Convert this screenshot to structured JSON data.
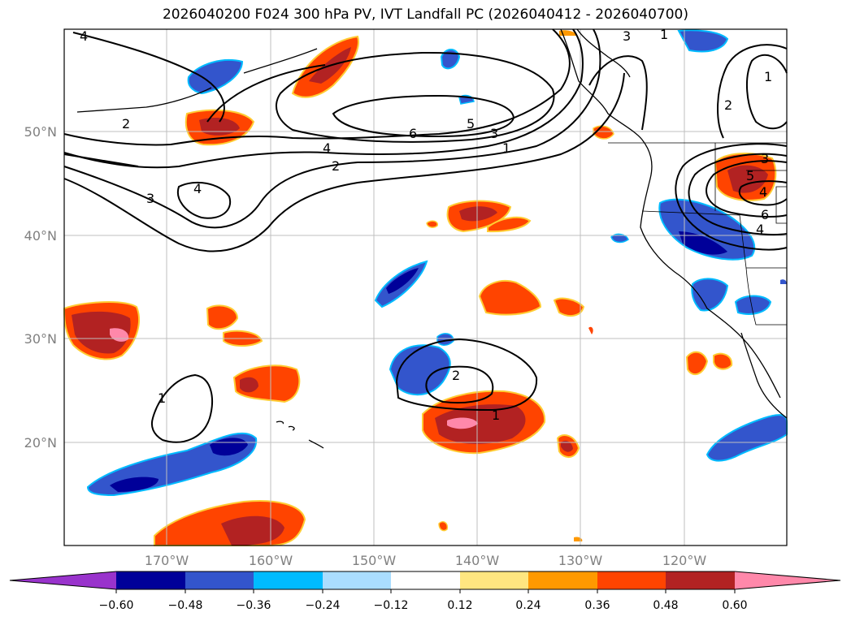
{
  "title": "2026040200 F024 300 hPa PV, IVT Landfall PC (2026040412 - 2026040700)",
  "map": {
    "lat_labels": [
      "50°N",
      "40°N",
      "30°N",
      "20°N"
    ],
    "lon_labels": [
      "170°W",
      "160°W",
      "150°W",
      "140°W",
      "130°W",
      "120°W"
    ],
    "contour_labels": [
      "4",
      "2",
      "4",
      "3",
      "4",
      "2",
      "6",
      "5",
      "3",
      "1",
      "3",
      "1",
      "2",
      "1",
      "3",
      "5",
      "4",
      "6",
      "4",
      "1",
      "2",
      "1"
    ],
    "features": [
      "pv-anomaly-shading",
      "ivt-pc-contours",
      "coastlines",
      "graticule"
    ]
  },
  "colorbar": {
    "ticks": [
      "−0.60",
      "−0.48",
      "−0.36",
      "−0.24",
      "−0.12",
      "0.12",
      "0.24",
      "0.36",
      "0.48",
      "0.60"
    ],
    "colors": [
      "#9933cc",
      "#000099",
      "#3355cc",
      "#00bbff",
      "#aaddff",
      "#ffffff",
      "#ffe680",
      "#ff9900",
      "#ff4400",
      "#b22222",
      "#ff88aa"
    ]
  }
}
